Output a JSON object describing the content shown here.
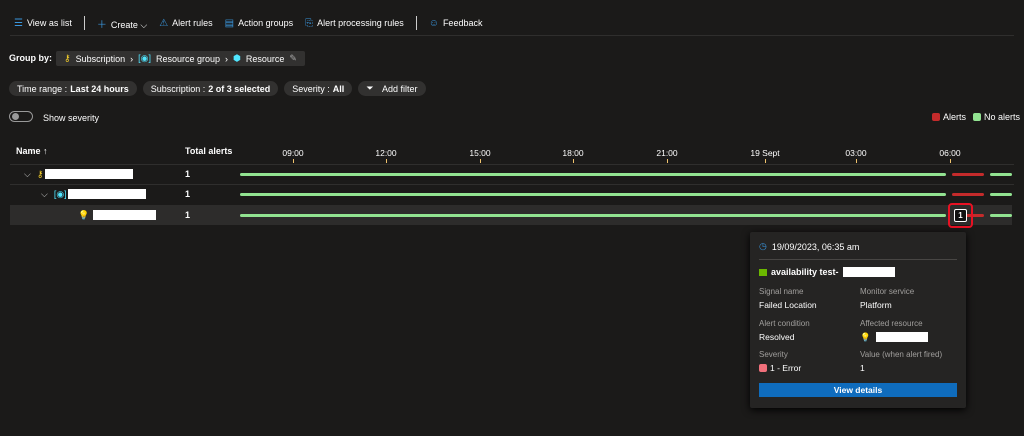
{
  "toolbar": {
    "view_as_list": "View as list",
    "create": "Create",
    "alert_rules": "Alert rules",
    "action_groups": "Action groups",
    "alert_processing_rules": "Alert processing rules",
    "feedback": "Feedback"
  },
  "group_by": {
    "label": "Group by:",
    "items": [
      "Subscription",
      "Resource group",
      "Resource"
    ]
  },
  "filters": [
    {
      "k": "Time range : ",
      "v": "Last 24 hours"
    },
    {
      "k": "Subscription : ",
      "v": "2 of 3 selected"
    },
    {
      "k": "Severity : ",
      "v": "All"
    }
  ],
  "add_filter": "Add filter",
  "show_severity": "Show severity",
  "show_severity_on": false,
  "legend": {
    "alerts": "Alerts",
    "no_alerts": "No alerts",
    "alerts_color": "#c42b2b",
    "no_alerts_color": "#92e391"
  },
  "table": {
    "name_header": "Name ↑",
    "total_header": "Total alerts",
    "time_ticks": [
      "09:00",
      "12:00",
      "15:00",
      "18:00",
      "21:00",
      "19 Sept",
      "03:00",
      "06:00"
    ],
    "rows": [
      {
        "type": "subscription",
        "total": "1"
      },
      {
        "type": "resource-group",
        "total": "1"
      },
      {
        "type": "resource",
        "total": "1",
        "badge": "1"
      }
    ]
  },
  "tooltip": {
    "time": "19/09/2023, 06:35 am",
    "title": "availability test-",
    "signal_name_label": "Signal name",
    "signal_name": "Failed Location",
    "monitor_service_label": "Monitor service",
    "monitor_service": "Platform",
    "alert_condition_label": "Alert condition",
    "alert_condition": "Resolved",
    "affected_resource_label": "Affected resource",
    "severity_label": "Severity",
    "severity": "1 - Error",
    "severity_color": "#f1707b",
    "value_label": "Value (when alert fired)",
    "value": "1",
    "view_details": "View details"
  }
}
